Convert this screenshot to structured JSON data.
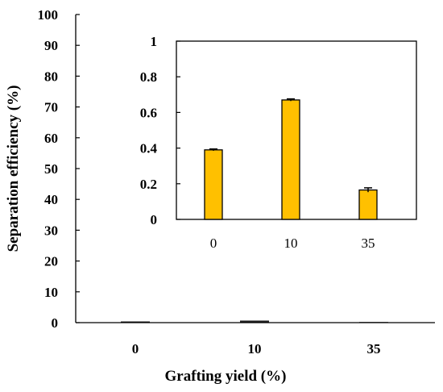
{
  "chart_data": [
    {
      "type": "bar",
      "categories": [
        "0",
        "10",
        "35"
      ],
      "values": [
        0.39,
        0.67,
        0.165
      ],
      "error": [
        0.005,
        0.006,
        0.012
      ],
      "xlabel": "Grafting yield (%)",
      "ylabel": "Separation efficiency (%)",
      "ylim": [
        0,
        100
      ],
      "yticks": [
        "0",
        "10",
        "20",
        "30",
        "40",
        "50",
        "60",
        "70",
        "80",
        "90",
        "100"
      ],
      "grid": false,
      "bar_color": "#222222"
    },
    {
      "type": "bar",
      "categories": [
        "0",
        "10",
        "35"
      ],
      "values": [
        0.39,
        0.67,
        0.165
      ],
      "error": [
        0.005,
        0.006,
        0.012
      ],
      "xlabel": "",
      "ylabel": "",
      "ylim": [
        0,
        1
      ],
      "yticks": [
        "0",
        "0.2",
        "0.4",
        "0.6",
        "0.8",
        "1"
      ],
      "grid": false,
      "bar_color": "#FFC000"
    }
  ]
}
